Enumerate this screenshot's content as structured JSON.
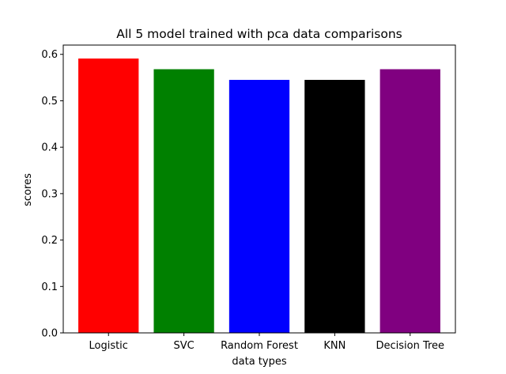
{
  "chart_data": {
    "type": "bar",
    "title": "All 5 model trained with pca data comparisons",
    "xlabel": "data types",
    "ylabel": "scores",
    "categories": [
      "Logistic",
      "SVC",
      "Random Forest",
      "KNN",
      "Decision Tree"
    ],
    "values": [
      0.591,
      0.568,
      0.545,
      0.545,
      0.568
    ],
    "colors": [
      "#ff0000",
      "#008000",
      "#0000ff",
      "#000000",
      "#800080"
    ],
    "ylim": [
      0,
      0.62
    ],
    "yticks": [
      0.0,
      0.1,
      0.2,
      0.3,
      0.4,
      0.5,
      0.6
    ],
    "ytick_labels": [
      "0.0",
      "0.1",
      "0.2",
      "0.3",
      "0.4",
      "0.5",
      "0.6"
    ],
    "grid": false,
    "legend": "none"
  }
}
